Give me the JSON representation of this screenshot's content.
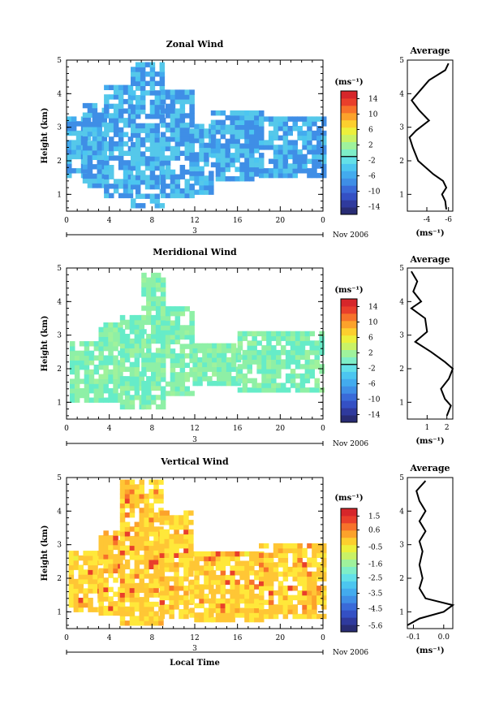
{
  "chart_data": [
    {
      "type": "heatmap",
      "title": "Zonal Wind",
      "xlabel": "",
      "ylabel": "Height (km)",
      "xlim": [
        0,
        24
      ],
      "ylim": [
        0.5,
        5
      ],
      "x_ticks": [
        "0",
        "4",
        "8",
        "12",
        "16",
        "20",
        "0"
      ],
      "y_ticks": [
        "1",
        "2",
        "3",
        "4",
        "5"
      ],
      "date_label": "3",
      "month_label": "Nov 2006",
      "colorbar": {
        "unit": "(ms⁻¹)",
        "ticks": [
          "14",
          "10",
          "6",
          "2",
          "-2",
          "-6",
          "-10",
          "-14"
        ],
        "range": [
          -16,
          16
        ],
        "zero_line": -1
      },
      "field": {
        "typical_value": -5,
        "fill_color": "#3f8ee6",
        "light_color": "#55c8ea"
      },
      "average_profile": {
        "title": "Average",
        "xlabel": "(ms⁻¹)",
        "x_ticks": [
          "-4",
          "-6"
        ],
        "xlim": [
          -2.2,
          -6.4
        ],
        "height": [
          0.55,
          0.8,
          1.0,
          1.2,
          1.4,
          1.6,
          2.0,
          2.4,
          2.7,
          2.9,
          3.2,
          3.5,
          3.8,
          4.1,
          4.4,
          4.7,
          4.9
        ],
        "values": [
          -5.8,
          -5.7,
          -5.4,
          -5.8,
          -5.5,
          -4.6,
          -3.2,
          -2.7,
          -2.4,
          -3.0,
          -4.2,
          -3.3,
          -2.6,
          -3.4,
          -4.2,
          -5.7,
          -6.0
        ]
      }
    },
    {
      "type": "heatmap",
      "title": "Meridional Wind",
      "xlabel": "",
      "ylabel": "Height (km)",
      "xlim": [
        0,
        24
      ],
      "ylim": [
        0.5,
        5
      ],
      "x_ticks": [
        "0",
        "4",
        "8",
        "12",
        "16",
        "20",
        "0"
      ],
      "y_ticks": [
        "1",
        "2",
        "3",
        "4",
        "5"
      ],
      "date_label": "3",
      "month_label": "Nov 2006",
      "colorbar": {
        "unit": "(ms⁻¹)",
        "ticks": [
          "14",
          "10",
          "6",
          "2",
          "-2",
          "-6",
          "-10",
          "-14"
        ],
        "range": [
          -16,
          16
        ],
        "zero_line": -1
      },
      "field": {
        "typical_value": 1.5,
        "fill_color": "#8ef0a6",
        "light_color": "#66ecc8"
      },
      "average_profile": {
        "title": "Average",
        "xlabel": "(ms⁻¹)",
        "x_ticks": [
          "1",
          "2"
        ],
        "xlim": [
          0,
          2.3
        ],
        "height": [
          0.6,
          0.9,
          1.1,
          1.4,
          1.7,
          2.0,
          2.2,
          2.5,
          2.8,
          3.1,
          3.5,
          3.8,
          4.0,
          4.3,
          4.6,
          4.9
        ],
        "values": [
          2.0,
          2.2,
          1.9,
          1.7,
          2.1,
          2.3,
          1.9,
          1.2,
          0.4,
          1.0,
          0.9,
          0.2,
          0.7,
          0.3,
          0.5,
          0.2
        ]
      }
    },
    {
      "type": "heatmap",
      "title": "Vertical Wind",
      "xlabel": "Local Time",
      "ylabel": "Height (km)",
      "xlim": [
        0,
        24
      ],
      "ylim": [
        0.5,
        5
      ],
      "x_ticks": [
        "0",
        "4",
        "8",
        "12",
        "16",
        "20",
        "0"
      ],
      "y_ticks": [
        "1",
        "2",
        "3",
        "4",
        "5"
      ],
      "date_label": "3",
      "month_label": "Nov 2006",
      "colorbar": {
        "unit": "(ms⁻¹)",
        "ticks": [
          "1.5",
          "0.6",
          "-0.5",
          "-1.6",
          "-2.5",
          "-3.5",
          "-4.5",
          "-5.6"
        ],
        "range": [
          -6,
          2
        ]
      },
      "field": {
        "typical_value": 0.2,
        "fill_color": "#ffc635",
        "light_color": "#ffe83a"
      },
      "average_profile": {
        "title": "Average",
        "xlabel": "(ms⁻¹)",
        "x_ticks": [
          "-0.1",
          "0.0"
        ],
        "xlim": [
          -0.12,
          0.03
        ],
        "height": [
          0.6,
          0.8,
          1.0,
          1.2,
          1.4,
          1.7,
          2.0,
          2.4,
          2.8,
          3.1,
          3.4,
          3.7,
          4.0,
          4.3,
          4.6,
          4.9
        ],
        "values": [
          -0.12,
          -0.08,
          0.0,
          0.03,
          -0.06,
          -0.08,
          -0.07,
          -0.08,
          -0.07,
          -0.08,
          -0.06,
          -0.08,
          -0.06,
          -0.08,
          -0.09,
          -0.06
        ]
      }
    }
  ]
}
